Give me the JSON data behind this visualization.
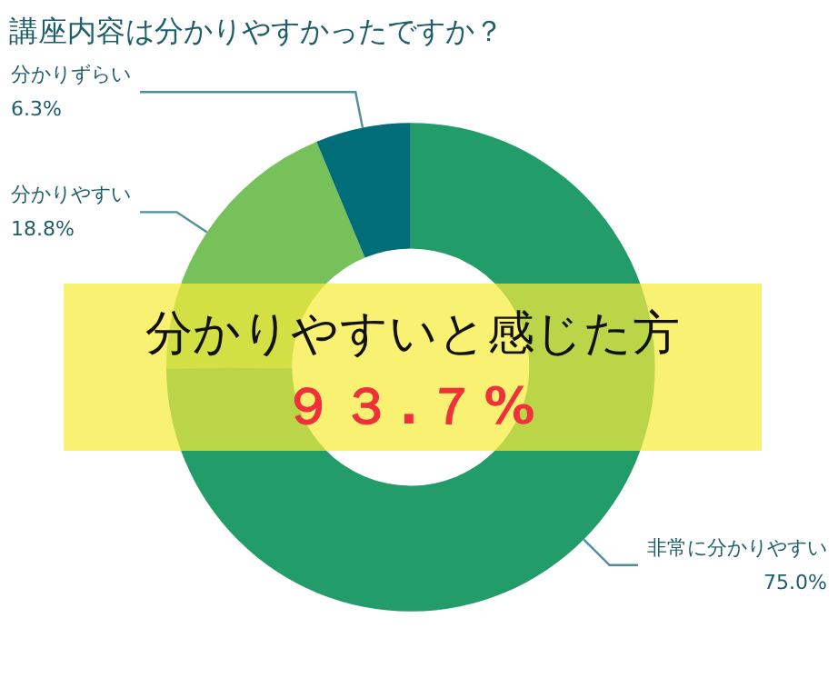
{
  "chart_data": {
    "type": "donut",
    "title": "講座内容は分かりやすかったですか？",
    "categories": [
      "非常に分かりやすい",
      "分かりやすい",
      "分かりずらい"
    ],
    "values": [
      75.0,
      18.8,
      6.3
    ],
    "colors": [
      "#229c68",
      "#77c15a",
      "#006e78"
    ],
    "value_labels": [
      "75.0%",
      "18.8%",
      "6.3%"
    ],
    "annotations": [
      "分かりやすいと感じた方",
      "９３.７%"
    ]
  }
}
